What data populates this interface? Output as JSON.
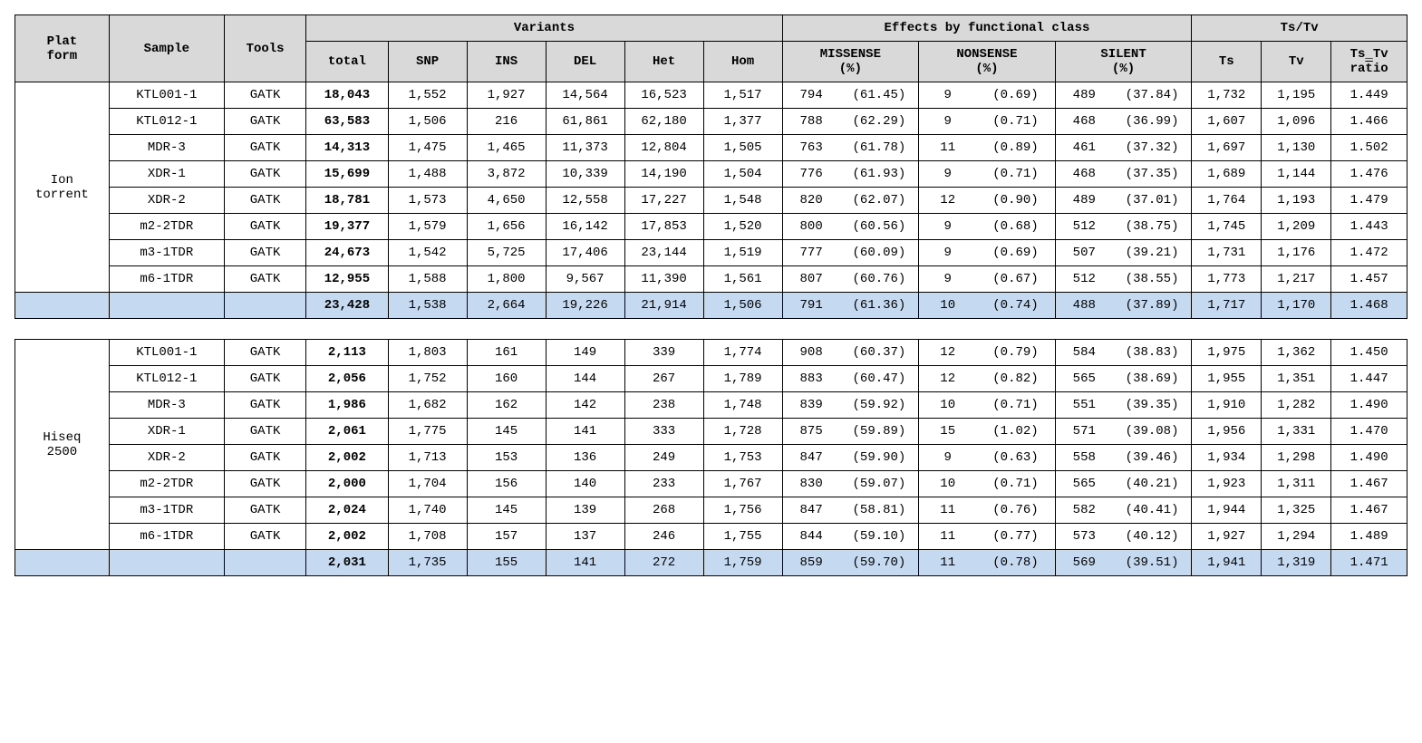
{
  "style": {
    "font_family": "Courier New, monospace",
    "body_fontsize_pt": 11,
    "header_bg": "#d9d9d9",
    "summary_bg": "#c5d9f1",
    "border_color": "#000000",
    "text_color": "#000000",
    "background_color": "#ffffff"
  },
  "headers": {
    "platform": "Plat\nform",
    "sample": "Sample",
    "tools": "Tools",
    "variants_group": "Variants",
    "effects_group": "Effects  by functional class",
    "tstv_group": "Ts/Tv",
    "total": "total",
    "snp": "SNP",
    "ins": "INS",
    "del": "DEL",
    "het": "Het",
    "hom": "Hom",
    "missense": "MISSENSE\n(%)",
    "nonsense": "NONSENSE\n(%)",
    "silent": "SILENT\n(%)",
    "ts": "Ts",
    "tv": "Tv",
    "ratio_l1": "Ts_Tv",
    "ratio_l2": "ra",
    "ratio_l2_o": "t",
    "ratio_l2_b": "io"
  },
  "tables": [
    {
      "platform": "Ion\ntorrent",
      "rows": [
        {
          "sample": "KTL001-1",
          "tools": "GATK",
          "total": "18,043",
          "snp": "1,552",
          "ins": "1,927",
          "del": "14,564",
          "het": "16,523",
          "hom": "1,517",
          "mis_n": "794",
          "mis_p": "(61.45)",
          "non_n": "9",
          "non_p": "(0.69)",
          "sil_n": "489",
          "sil_p": "(37.84)",
          "ts": "1,732",
          "tv": "1,195",
          "ratio": "1.449"
        },
        {
          "sample": "KTL012-1",
          "tools": "GATK",
          "total": "63,583",
          "snp": "1,506",
          "ins": "216",
          "del": "61,861",
          "het": "62,180",
          "hom": "1,377",
          "mis_n": "788",
          "mis_p": "(62.29)",
          "non_n": "9",
          "non_p": "(0.71)",
          "sil_n": "468",
          "sil_p": "(36.99)",
          "ts": "1,607",
          "tv": "1,096",
          "ratio": "1.466"
        },
        {
          "sample": "MDR-3",
          "tools": "GATK",
          "total": "14,313",
          "snp": "1,475",
          "ins": "1,465",
          "del": "11,373",
          "het": "12,804",
          "hom": "1,505",
          "mis_n": "763",
          "mis_p": "(61.78)",
          "non_n": "11",
          "non_p": "(0.89)",
          "sil_n": "461",
          "sil_p": "(37.32)",
          "ts": "1,697",
          "tv": "1,130",
          "ratio": "1.502"
        },
        {
          "sample": "XDR-1",
          "tools": "GATK",
          "total": "15,699",
          "snp": "1,488",
          "ins": "3,872",
          "del": "10,339",
          "het": "14,190",
          "hom": "1,504",
          "mis_n": "776",
          "mis_p": "(61.93)",
          "non_n": "9",
          "non_p": "(0.71)",
          "sil_n": "468",
          "sil_p": "(37.35)",
          "ts": "1,689",
          "tv": "1,144",
          "ratio": "1.476"
        },
        {
          "sample": "XDR-2",
          "tools": "GATK",
          "total": "18,781",
          "snp": "1,573",
          "ins": "4,650",
          "del": "12,558",
          "het": "17,227",
          "hom": "1,548",
          "mis_n": "820",
          "mis_p": "(62.07)",
          "non_n": "12",
          "non_p": "(0.90)",
          "sil_n": "489",
          "sil_p": "(37.01)",
          "ts": "1,764",
          "tv": "1,193",
          "ratio": "1.479"
        },
        {
          "sample": "m2-2TDR",
          "tools": "GATK",
          "total": "19,377",
          "snp": "1,579",
          "ins": "1,656",
          "del": "16,142",
          "het": "17,853",
          "hom": "1,520",
          "mis_n": "800",
          "mis_p": "(60.56)",
          "non_n": "9",
          "non_p": "(0.68)",
          "sil_n": "512",
          "sil_p": "(38.75)",
          "ts": "1,745",
          "tv": "1,209",
          "ratio": "1.443"
        },
        {
          "sample": "m3-1TDR",
          "tools": "GATK",
          "total": "24,673",
          "snp": "1,542",
          "ins": "5,725",
          "del": "17,406",
          "het": "23,144",
          "hom": "1,519",
          "mis_n": "777",
          "mis_p": "(60.09)",
          "non_n": "9",
          "non_p": "(0.69)",
          "sil_n": "507",
          "sil_p": "(39.21)",
          "ts": "1,731",
          "tv": "1,176",
          "ratio": "1.472"
        },
        {
          "sample": "m6-1TDR",
          "tools": "GATK",
          "total": "12,955",
          "snp": "1,588",
          "ins": "1,800",
          "del": "9,567",
          "het": "11,390",
          "hom": "1,561",
          "mis_n": "807",
          "mis_p": "(60.76)",
          "non_n": "9",
          "non_p": "(0.67)",
          "sil_n": "512",
          "sil_p": "(38.55)",
          "ts": "1,773",
          "tv": "1,217",
          "ratio": "1.457"
        }
      ],
      "summary": {
        "total": "23,428",
        "snp": "1,538",
        "ins": "2,664",
        "del": "19,226",
        "het": "21,914",
        "hom": "1,506",
        "mis_n": "791",
        "mis_p": "(61.36)",
        "non_n": "10",
        "non_p": "(0.74)",
        "sil_n": "488",
        "sil_p": "(37.89)",
        "ts": "1,717",
        "tv": "1,170",
        "ratio": "1.468"
      }
    },
    {
      "platform": "Hiseq\n2500",
      "rows": [
        {
          "sample": "KTL001-1",
          "tools": "GATK",
          "total": "2,113",
          "snp": "1,803",
          "ins": "161",
          "del": "149",
          "het": "339",
          "hom": "1,774",
          "mis_n": "908",
          "mis_p": "(60.37)",
          "non_n": "12",
          "non_p": "(0.79)",
          "sil_n": "584",
          "sil_p": "(38.83)",
          "ts": "1,975",
          "tv": "1,362",
          "ratio": "1.450"
        },
        {
          "sample": "KTL012-1",
          "tools": "GATK",
          "total": "2,056",
          "snp": "1,752",
          "ins": "160",
          "del": "144",
          "het": "267",
          "hom": "1,789",
          "mis_n": "883",
          "mis_p": "(60.47)",
          "non_n": "12",
          "non_p": "(0.82)",
          "sil_n": "565",
          "sil_p": "(38.69)",
          "ts": "1,955",
          "tv": "1,351",
          "ratio": "1.447"
        },
        {
          "sample": "MDR-3",
          "tools": "GATK",
          "total": "1,986",
          "snp": "1,682",
          "ins": "162",
          "del": "142",
          "het": "238",
          "hom": "1,748",
          "mis_n": "839",
          "mis_p": "(59.92)",
          "non_n": "10",
          "non_p": "(0.71)",
          "sil_n": "551",
          "sil_p": "(39.35)",
          "ts": "1,910",
          "tv": "1,282",
          "ratio": "1.490"
        },
        {
          "sample": "XDR-1",
          "tools": "GATK",
          "total": "2,061",
          "snp": "1,775",
          "ins": "145",
          "del": "141",
          "het": "333",
          "hom": "1,728",
          "mis_n": "875",
          "mis_p": "(59.89)",
          "non_n": "15",
          "non_p": "(1.02)",
          "sil_n": "571",
          "sil_p": "(39.08)",
          "ts": "1,956",
          "tv": "1,331",
          "ratio": "1.470"
        },
        {
          "sample": "XDR-2",
          "tools": "GATK",
          "total": "2,002",
          "snp": "1,713",
          "ins": "153",
          "del": "136",
          "het": "249",
          "hom": "1,753",
          "mis_n": "847",
          "mis_p": "(59.90)",
          "non_n": "9",
          "non_p": "(0.63)",
          "sil_n": "558",
          "sil_p": "(39.46)",
          "ts": "1,934",
          "tv": "1,298",
          "ratio": "1.490"
        },
        {
          "sample": "m2-2TDR",
          "tools": "GATK",
          "total": "2,000",
          "snp": "1,704",
          "ins": "156",
          "del": "140",
          "het": "233",
          "hom": "1,767",
          "mis_n": "830",
          "mis_p": "(59.07)",
          "non_n": "10",
          "non_p": "(0.71)",
          "sil_n": "565",
          "sil_p": "(40.21)",
          "ts": "1,923",
          "tv": "1,311",
          "ratio": "1.467"
        },
        {
          "sample": "m3-1TDR",
          "tools": "GATK",
          "total": "2,024",
          "snp": "1,740",
          "ins": "145",
          "del": "139",
          "het": "268",
          "hom": "1,756",
          "mis_n": "847",
          "mis_p": "(58.81)",
          "non_n": "11",
          "non_p": "(0.76)",
          "sil_n": "582",
          "sil_p": "(40.41)",
          "ts": "1,944",
          "tv": "1,325",
          "ratio": "1.467"
        },
        {
          "sample": "m6-1TDR",
          "tools": "GATK",
          "total": "2,002",
          "snp": "1,708",
          "ins": "157",
          "del": "137",
          "het": "246",
          "hom": "1,755",
          "mis_n": "844",
          "mis_p": "(59.10)",
          "non_n": "11",
          "non_p": "(0.77)",
          "sil_n": "573",
          "sil_p": "(40.12)",
          "ts": "1,927",
          "tv": "1,294",
          "ratio": "1.489"
        }
      ],
      "summary": {
        "total": "2,031",
        "snp": "1,735",
        "ins": "155",
        "del": "141",
        "het": "272",
        "hom": "1,759",
        "mis_n": "859",
        "mis_p": "(59.70)",
        "non_n": "11",
        "non_p": "(0.78)",
        "sil_n": "569",
        "sil_p": "(39.51)",
        "ts": "1,941",
        "tv": "1,319",
        "ratio": "1.471"
      }
    }
  ]
}
